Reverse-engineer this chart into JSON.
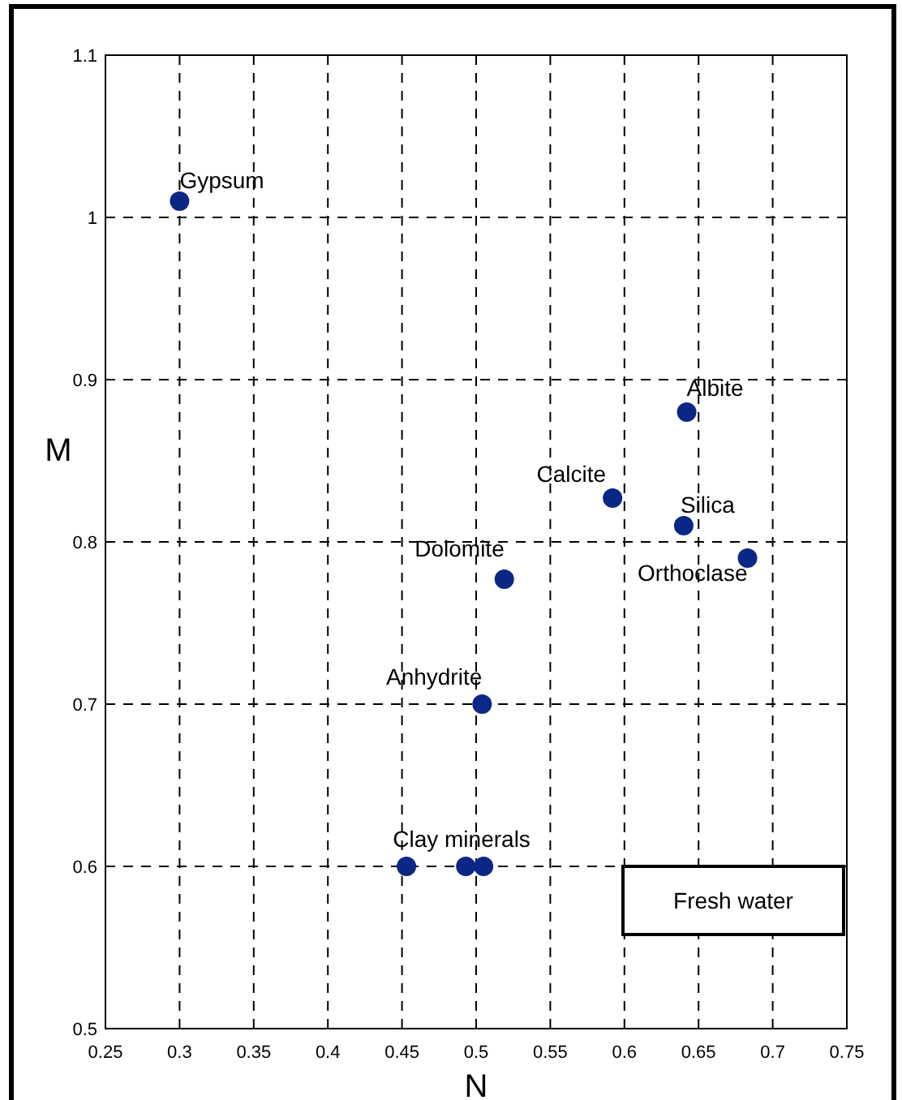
{
  "chart_data": {
    "type": "scatter",
    "xlabel": "N",
    "ylabel": "M",
    "x": [
      0.3,
      0.642,
      0.592,
      0.64,
      0.683,
      0.519,
      0.504,
      0.453,
      0.493,
      0.505
    ],
    "series": [
      {
        "color": "#0b2785",
        "values": [
          1.01,
          0.88,
          0.827,
          0.81,
          0.79,
          0.777,
          0.7,
          0.6,
          0.6,
          0.6
        ]
      }
    ],
    "xlim": [
      0.25,
      0.75
    ],
    "xticks": [
      0.25,
      0.3,
      0.35,
      0.4,
      0.45,
      0.5,
      0.55,
      0.6,
      0.65,
      0.7,
      0.75
    ],
    "ylim": [
      0.5,
      1.1
    ],
    "yticks": [
      0.5,
      0.6,
      0.7,
      0.8,
      0.9,
      1,
      1.1
    ],
    "grid": true,
    "marker": "circle",
    "annotations": [
      {
        "text": "Gypsum",
        "x": 0.3,
        "y": 1.01
      },
      {
        "text": "Albite",
        "x": 0.642,
        "y": 0.88
      },
      {
        "text": "Calcite",
        "x": 0.592,
        "y": 0.827
      },
      {
        "text": "Silica",
        "x": 0.64,
        "y": 0.81
      },
      {
        "text": "Orthoclase",
        "x": 0.683,
        "y": 0.79
      },
      {
        "text": "Dolomite",
        "x": 0.519,
        "y": 0.777
      },
      {
        "text": "Anhydrite",
        "x": 0.504,
        "y": 0.7
      },
      {
        "text": "Clay minerals",
        "x": 0.453,
        "y": 0.6
      },
      "Fresh water"
    ]
  }
}
